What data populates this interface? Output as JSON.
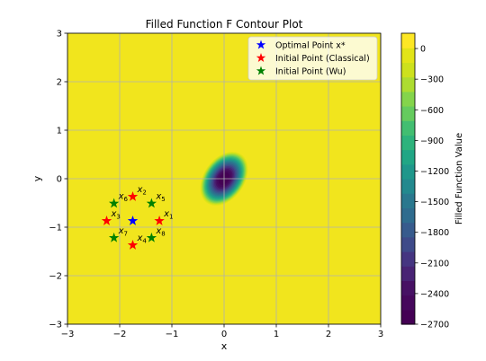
{
  "chart_data": {
    "type": "contour",
    "title": "Filled Function F Contour Plot",
    "xlabel": "x",
    "ylabel": "y",
    "xlim": [
      -3,
      3
    ],
    "ylim": [
      -3,
      3
    ],
    "xticks": [
      -3,
      -2,
      -1,
      0,
      1,
      2,
      3
    ],
    "yticks": [
      -3,
      -2,
      -1,
      0,
      1,
      2,
      3
    ],
    "grid": true,
    "colorbar": {
      "label": "Filled Function Value",
      "range": [
        -2700,
        150
      ],
      "ticks": [
        0,
        -300,
        -600,
        -900,
        -1200,
        -1500,
        -1800,
        -2100,
        -2400,
        -2700
      ],
      "tick_labels": [
        "0",
        "−300",
        "−600",
        "−900",
        "−1200",
        "−1500",
        "−1800",
        "−2100",
        "−2400",
        "−2700"
      ],
      "colors": [
        "#440154",
        "#46085c",
        "#471164",
        "#482374",
        "#453581",
        "#3e4a89",
        "#375b8d",
        "#2f6c8e",
        "#2a788e",
        "#23898e",
        "#1f978b",
        "#21a685",
        "#2eb37c",
        "#42be71",
        "#65cb5e",
        "#84d44b",
        "#addc30",
        "#cde11d",
        "#e2e418",
        "#fde725"
      ]
    },
    "contour_center": {
      "x": 0.0,
      "y": 0.0,
      "min_value": -2700
    },
    "legend": {
      "position": "upper-right",
      "entries": [
        {
          "label": "Optimal Point x*",
          "color": "#0000ff"
        },
        {
          "label": "Initial Point (Classical)",
          "color": "#ff0000"
        },
        {
          "label": "Initial Point (Wu)",
          "color": "#008000"
        }
      ]
    },
    "series": [
      {
        "name": "Optimal Point x*",
        "color": "#0000ff",
        "points": [
          {
            "x": -1.75,
            "y": -0.87
          }
        ]
      },
      {
        "name": "Initial Point (Classical)",
        "color": "#ff0000",
        "points": [
          {
            "x": -1.24,
            "y": -0.87,
            "label": "x",
            "sub": "1"
          },
          {
            "x": -1.75,
            "y": -0.37,
            "label": "x",
            "sub": "2"
          },
          {
            "x": -2.25,
            "y": -0.87,
            "label": "x",
            "sub": "3"
          },
          {
            "x": -1.75,
            "y": -1.37,
            "label": "x",
            "sub": "4"
          }
        ]
      },
      {
        "name": "Initial Point (Wu)",
        "color": "#008000",
        "points": [
          {
            "x": -1.39,
            "y": -0.51,
            "label": "x",
            "sub": "5"
          },
          {
            "x": -2.11,
            "y": -0.51,
            "label": "x",
            "sub": "6"
          },
          {
            "x": -2.11,
            "y": -1.22,
            "label": "x",
            "sub": "7"
          },
          {
            "x": -1.39,
            "y": -1.22,
            "label": "x",
            "sub": "8"
          }
        ]
      }
    ]
  }
}
